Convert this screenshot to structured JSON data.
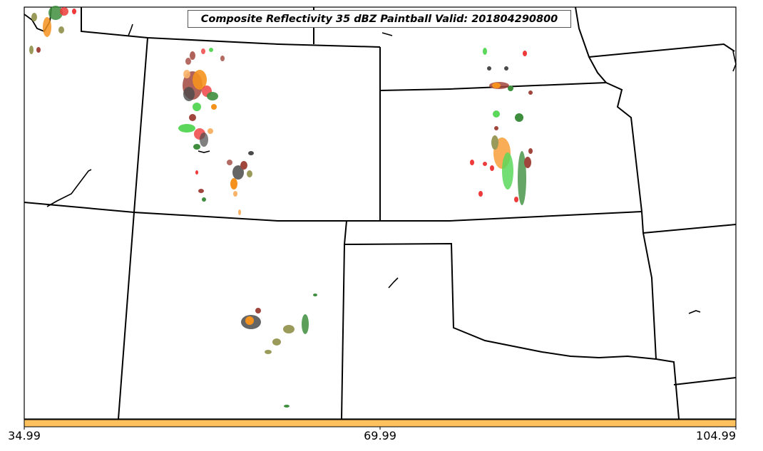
{
  "title": "Composite Reflectivity 35 dBZ Paintball Valid: 201804290800",
  "colorbar": {
    "color": "#FFC15E",
    "ticks": [
      "34.99",
      "69.99",
      "104.99"
    ]
  },
  "colors": {
    "red": "#EE3A3A",
    "brown": "#A0463C",
    "orange": "#F5921E",
    "light_orange": "#F9B46A",
    "green": "#5BD85B",
    "dark_green": "#3E8E3E",
    "olive": "#9A9A5A",
    "dark_gray": "#4A4A4A",
    "border": "#000000"
  }
}
